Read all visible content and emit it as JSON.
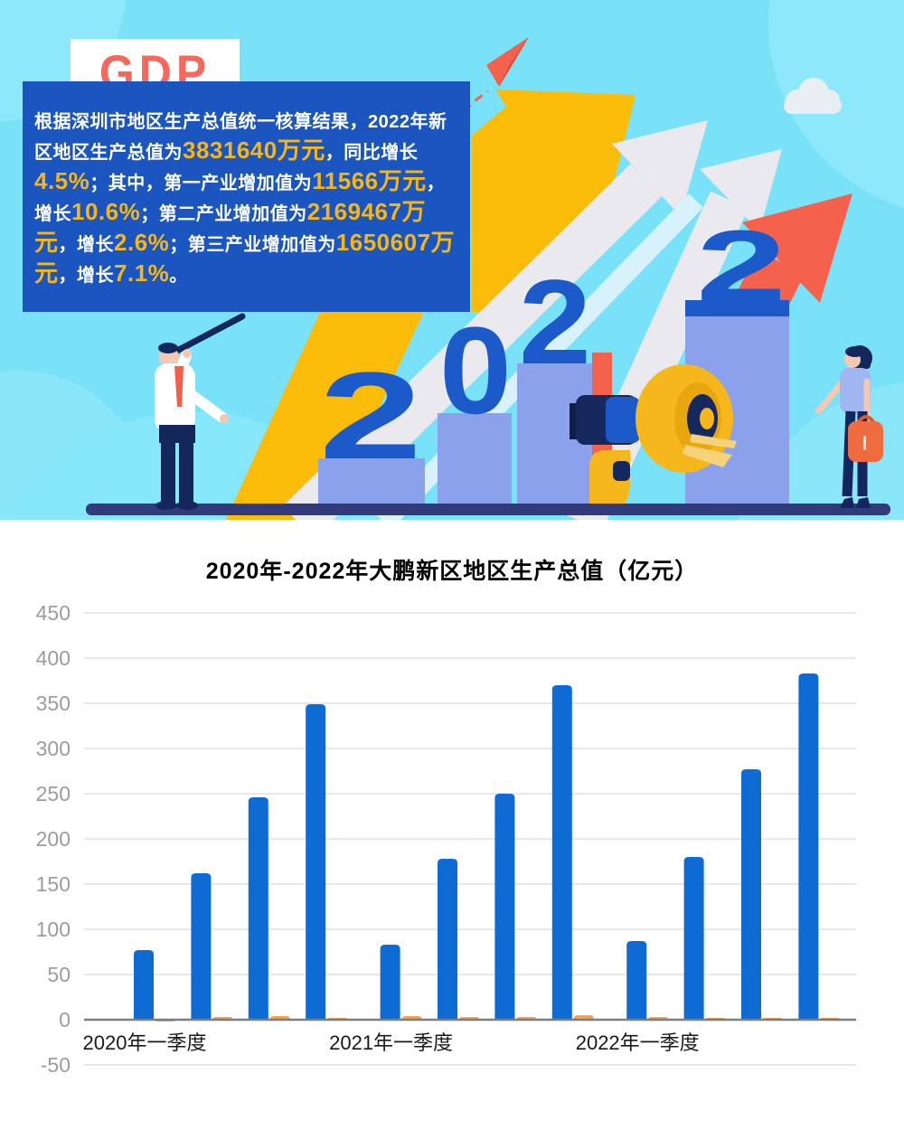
{
  "hero": {
    "badge_label": "GDP",
    "year_digits": [
      "2",
      "0",
      "2",
      "2"
    ],
    "paragraph_segments": [
      {
        "text": "根据深圳市地区生产总值统一核算结果，2022年新区地区生产总值为",
        "highlight": false
      },
      {
        "text": "3831640万元",
        "highlight": true
      },
      {
        "text": "，同比增长",
        "highlight": false
      },
      {
        "text": "4.5%",
        "highlight": true
      },
      {
        "text": "；其中，第一产业增加值为",
        "highlight": false
      },
      {
        "text": "11566万元",
        "highlight": true
      },
      {
        "text": "，增长",
        "highlight": false
      },
      {
        "text": "10.6%",
        "highlight": true
      },
      {
        "text": "；第二产业增加值为",
        "highlight": false
      },
      {
        "text": "2169467万元",
        "highlight": true
      },
      {
        "text": "，增长",
        "highlight": false
      },
      {
        "text": "2.6%",
        "highlight": true
      },
      {
        "text": "；第三产业增加值为",
        "highlight": false
      },
      {
        "text": "1650607万元",
        "highlight": true
      },
      {
        "text": "，增长",
        "highlight": false
      },
      {
        "text": "7.1%",
        "highlight": true
      },
      {
        "text": "。",
        "highlight": false
      }
    ],
    "colors": {
      "sky": "#79E2F9",
      "panel_blue": "#1A55C0",
      "badge_text_coral": "#F4695B",
      "highlight_gold": "#F7B616",
      "year_blue": "#1D5AC9",
      "column_periwinkle": "#8BA1EC",
      "arrow_yellow": "#FBBB09",
      "arrow_white": "#E9E9EE",
      "arrow_coral": "#F4624E",
      "ground_navy": "#333A7B"
    }
  },
  "chart_data": {
    "type": "bar",
    "title": "2020年-2022年大鹏新区地区生产总值（亿元）",
    "xlabel": "",
    "ylabel": "",
    "ylim": [
      -50,
      450
    ],
    "y_ticks": [
      450,
      400,
      350,
      300,
      250,
      200,
      150,
      100,
      50,
      0,
      -50
    ],
    "x_tick_labels": [
      {
        "text": "2020年一季度",
        "pair_index": 0
      },
      {
        "text": "2021年一季度",
        "pair_index": 4
      },
      {
        "text": "2022年一季度",
        "pair_index": 8
      }
    ],
    "grid": true,
    "legend": false,
    "series": [
      {
        "name": "blue",
        "color": "#0F6BD4",
        "values": [
          77,
          162,
          246,
          349,
          83,
          178,
          250,
          370,
          87,
          180,
          277,
          383
        ]
      },
      {
        "name": "orange",
        "color": "#F5A052",
        "values": [
          -2,
          3,
          4,
          2,
          4,
          3,
          3,
          5,
          3,
          2,
          2,
          2
        ]
      }
    ]
  }
}
